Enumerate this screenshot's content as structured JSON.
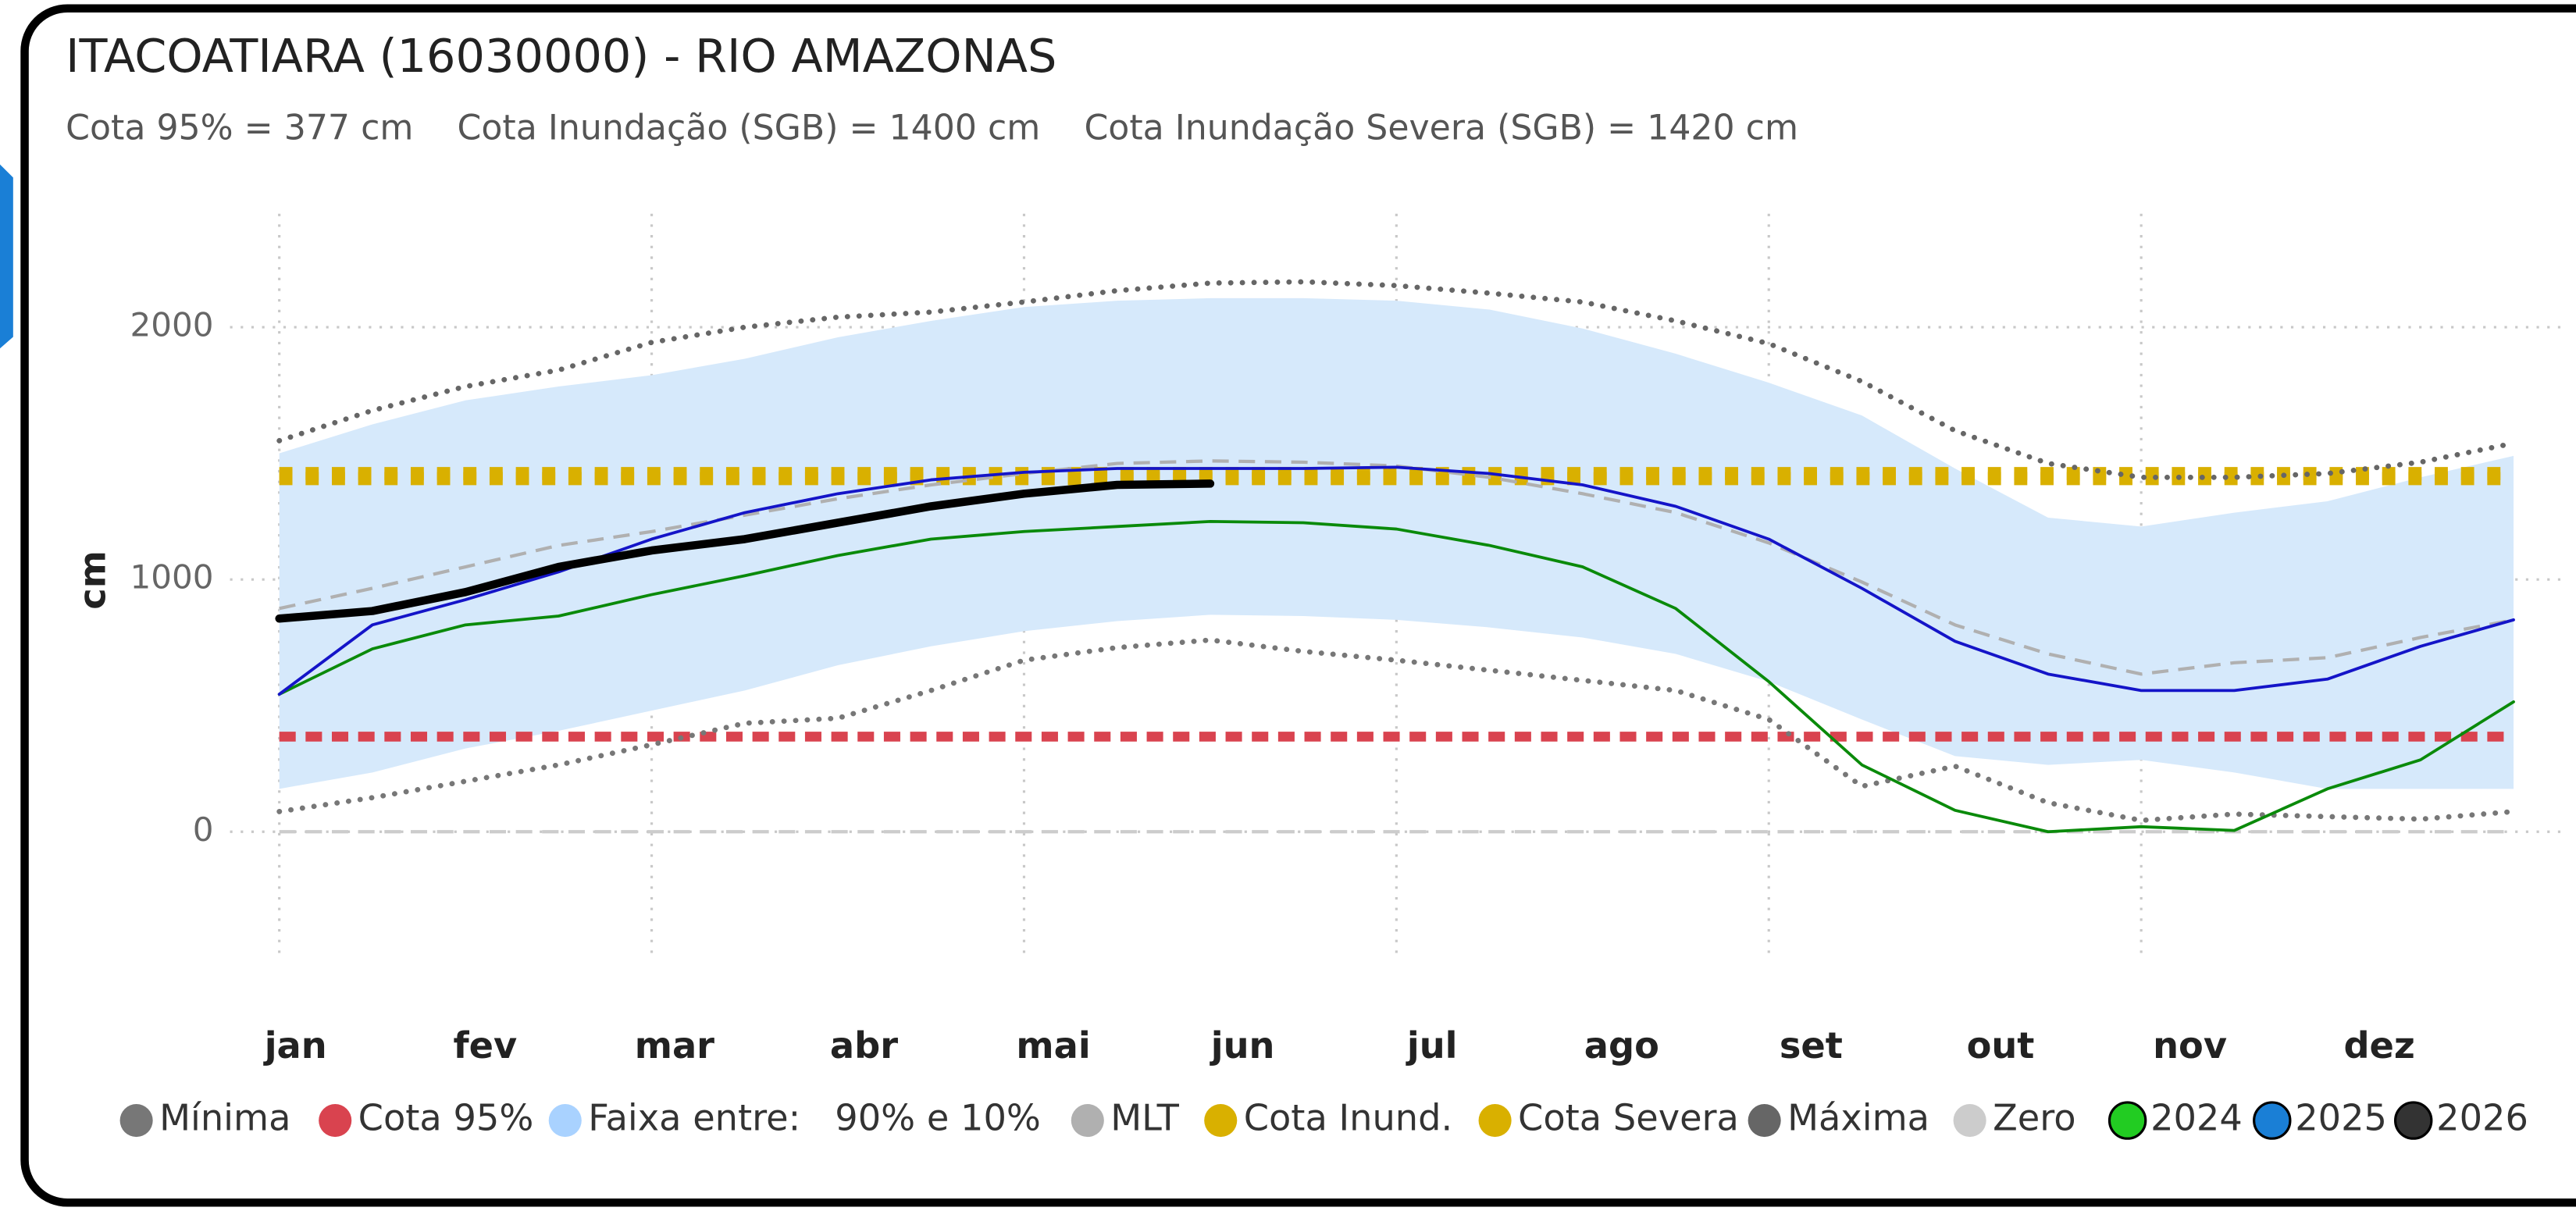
{
  "chart_data": {
    "type": "line",
    "title": "ITACOATIARA (16030000) - RIO AMAZONAS",
    "subtitle": "Cota 95% = 377 cm    Cota Inundação (SGB) = 1400 cm    Cota Inundação Severa (SGB) = 1420 cm",
    "y_label": "cm",
    "categories": [
      "jan",
      null,
      "fev",
      null,
      "mar",
      null,
      "abr",
      null,
      "mai",
      null,
      "jun",
      null,
      "jul",
      null,
      "ago",
      null,
      "set",
      null,
      "out",
      null,
      "nov",
      null,
      "dez",
      null,
      null
    ],
    "ylim": [
      -500,
      2450
    ],
    "yticks": [
      0,
      1000,
      2000
    ],
    "grid": true,
    "series": [
      {
        "name": "Mínima",
        "type": "line",
        "style": "dotted",
        "color": "#777777",
        "legend_color": "#777777",
        "values": [
          80,
          135,
          200,
          265,
          345,
          430,
          450,
          560,
          680,
          730,
          760,
          715,
          680,
          640,
          600,
          560,
          445,
          180,
          260,
          115,
          45,
          70,
          60,
          50,
          80
        ]
      },
      {
        "name": "Cota 95%",
        "type": "hline",
        "style": "dashed-red",
        "color": "#d9434f",
        "legend_color": "#d9434f",
        "value": 377
      },
      {
        "name": "Faixa entre:   90% e 10%",
        "type": "band",
        "color": "#d6e9fb",
        "legend_color": "#a9d2ff",
        "low": [
          170,
          235,
          330,
          400,
          480,
          560,
          660,
          735,
          795,
          835,
          860,
          855,
          840,
          810,
          770,
          705,
          595,
          445,
          300,
          265,
          285,
          235,
          170,
          170,
          170
        ],
        "high": [
          1500,
          1615,
          1710,
          1765,
          1810,
          1875,
          1960,
          2025,
          2080,
          2105,
          2115,
          2115,
          2105,
          2070,
          1995,
          1895,
          1780,
          1650,
          1440,
          1245,
          1210,
          1265,
          1310,
          1405,
          1490
        ]
      },
      {
        "name": "MLT",
        "type": "line",
        "style": "dashed",
        "color": "#b0b0b0",
        "legend_color": "#b0b0b0",
        "values": [
          885,
          965,
          1050,
          1135,
          1190,
          1255,
          1320,
          1375,
          1420,
          1460,
          1470,
          1465,
          1450,
          1405,
          1340,
          1265,
          1145,
          990,
          820,
          705,
          625,
          670,
          690,
          770,
          840
        ]
      },
      {
        "name": "Cota Inund.",
        "type": "hline",
        "style": "square-dots",
        "color": "#d9b000",
        "legend_color": "#d9b000",
        "value": 1400
      },
      {
        "name": "Cota Severa",
        "type": "hline",
        "style": "square-dots",
        "color": "#d9b000",
        "legend_color": "#d9b000",
        "value": 1420
      },
      {
        "name": "Máxima",
        "type": "line",
        "style": "dotted",
        "color": "#666666",
        "legend_color": "#666666",
        "values": [
          1550,
          1670,
          1765,
          1830,
          1940,
          2000,
          2040,
          2060,
          2100,
          2145,
          2175,
          2180,
          2165,
          2135,
          2100,
          2025,
          1935,
          1785,
          1590,
          1460,
          1405,
          1405,
          1420,
          1465,
          1540
        ]
      },
      {
        "name": "Zero",
        "type": "hline",
        "style": "dashed",
        "color": "#cccccc",
        "legend_color": "#cccccc",
        "value": 0
      },
      {
        "name": "2024",
        "type": "line",
        "style": "solid",
        "color": "#0a8a0a",
        "legend_color": "#22cc22",
        "outline": true,
        "values": [
          545,
          725,
          820,
          855,
          940,
          1015,
          1095,
          1160,
          1190,
          1210,
          1230,
          1225,
          1200,
          1135,
          1050,
          885,
          595,
          265,
          85,
          0,
          20,
          5,
          170,
          285,
          515
        ]
      },
      {
        "name": "2025",
        "type": "line",
        "style": "solid",
        "color": "#1414c8",
        "legend_color": "#1a7fd6",
        "outline": true,
        "values": [
          545,
          820,
          920,
          1030,
          1160,
          1265,
          1340,
          1395,
          1425,
          1440,
          1440,
          1440,
          1445,
          1420,
          1375,
          1290,
          1160,
          965,
          755,
          625,
          560,
          560,
          605,
          735,
          840
        ]
      },
      {
        "name": "2026",
        "type": "line",
        "style": "bold",
        "color": "#000000",
        "legend_color": "#333333",
        "outline": true,
        "values": [
          845,
          875,
          950,
          1050,
          1115,
          1160,
          1225,
          1290,
          1340,
          1375,
          1380,
          null,
          null,
          null,
          null,
          null,
          null,
          null,
          null,
          null,
          null,
          null,
          null,
          null,
          null
        ]
      }
    ]
  }
}
